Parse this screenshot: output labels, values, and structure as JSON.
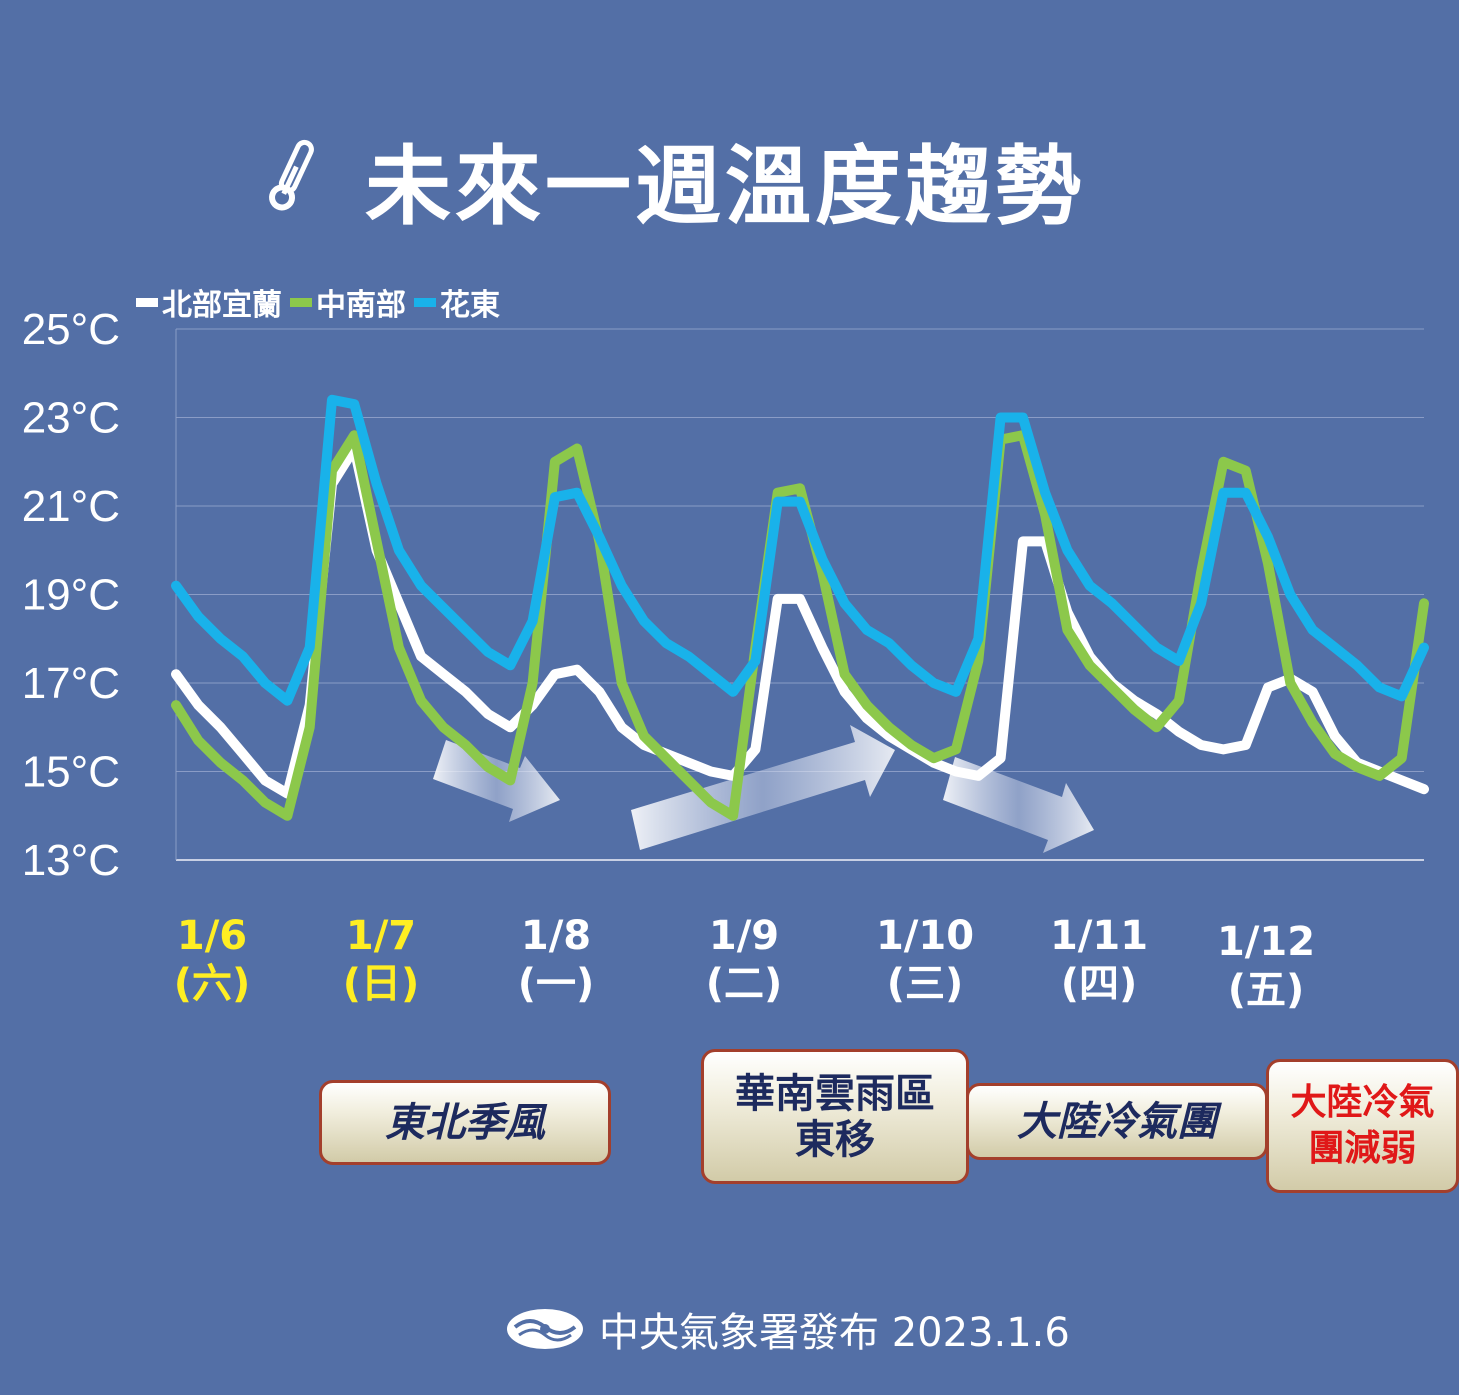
{
  "title": "未來一週溫度趨勢",
  "legend": [
    {
      "label": "北部宜蘭",
      "color": "#ffffff"
    },
    {
      "label": "中南部",
      "color": "#8cc84b"
    },
    {
      "label": "花東",
      "color": "#19b2ea"
    }
  ],
  "dates": [
    {
      "date": "1/6",
      "day": "(六)",
      "weekend": true
    },
    {
      "date": "1/7",
      "day": "(日)",
      "weekend": true
    },
    {
      "date": "1/8",
      "day": "(一)",
      "weekend": false
    },
    {
      "date": "1/9",
      "day": "(二)",
      "weekend": false
    },
    {
      "date": "1/10",
      "day": "(三)",
      "weekend": false
    },
    {
      "date": "1/11",
      "day": "(四)",
      "weekend": false
    },
    {
      "date": "1/12",
      "day": "(五)",
      "weekend": false
    }
  ],
  "notes": {
    "northeast_monsoon": "東北季風",
    "south_china_rain": [
      "華南雲雨區",
      "東移"
    ],
    "continental_cold_air": "大陸冷氣團",
    "cold_air_weakening": [
      "大陸冷氣",
      "團減弱"
    ]
  },
  "footer": {
    "text": "中央氣象署發布 2023.1.6"
  },
  "chart_data": {
    "type": "line",
    "ylim": [
      13,
      25
    ],
    "yticks": [
      "25°C",
      "23°C",
      "21°C",
      "19°C",
      "17°C",
      "15°C",
      "13°C"
    ],
    "grid": true,
    "legend_position": "top-left",
    "x": [
      0,
      1,
      2,
      3,
      4,
      5,
      6,
      7,
      8,
      9,
      10,
      11,
      12,
      13,
      14,
      15,
      16,
      17,
      18,
      19,
      20,
      21,
      22,
      23,
      24,
      25,
      26,
      27,
      28,
      29,
      30,
      31,
      32,
      33,
      34,
      35,
      36,
      37,
      38,
      39,
      40,
      41,
      42,
      43,
      44,
      45,
      46,
      47,
      48,
      49,
      50,
      51,
      52,
      53,
      54,
      55,
      56
    ],
    "series": [
      {
        "name": "北部宜蘭",
        "color": "#ffffff",
        "values": [
          17.2,
          16.5,
          16.0,
          15.4,
          14.8,
          14.5,
          16.5,
          21.5,
          22.3,
          20.0,
          18.8,
          17.6,
          17.2,
          16.8,
          16.3,
          16.0,
          16.5,
          17.2,
          17.3,
          16.8,
          16.0,
          15.6,
          15.4,
          15.2,
          15.0,
          14.9,
          15.5,
          18.9,
          18.9,
          17.8,
          16.8,
          16.2,
          15.8,
          15.5,
          15.2,
          15.0,
          14.9,
          15.3,
          20.2,
          20.2,
          18.6,
          17.6,
          17.0,
          16.6,
          16.3,
          15.9,
          15.6,
          15.5,
          15.6,
          16.9,
          17.1,
          16.8,
          15.8,
          15.2,
          15.0,
          14.8,
          14.6
        ]
      },
      {
        "name": "中南部",
        "color": "#8cc84b",
        "values": [
          16.5,
          15.7,
          15.2,
          14.8,
          14.3,
          14.0,
          16.0,
          21.8,
          22.6,
          20.2,
          17.8,
          16.6,
          16.0,
          15.6,
          15.1,
          14.8,
          17.0,
          22.0,
          22.3,
          20.2,
          17.0,
          15.8,
          15.3,
          14.8,
          14.3,
          14.0,
          17.8,
          21.3,
          21.4,
          19.5,
          17.2,
          16.5,
          16.0,
          15.6,
          15.3,
          15.5,
          17.5,
          22.5,
          22.6,
          20.8,
          18.2,
          17.4,
          16.9,
          16.4,
          16.0,
          16.6,
          19.5,
          22.0,
          21.8,
          19.7,
          17.0,
          16.1,
          15.4,
          15.1,
          14.9,
          15.3,
          18.8
        ]
      },
      {
        "name": "花東",
        "color": "#19b2ea",
        "values": [
          19.2,
          18.5,
          18.0,
          17.6,
          17.0,
          16.6,
          17.8,
          23.4,
          23.3,
          21.5,
          20.0,
          19.2,
          18.7,
          18.2,
          17.7,
          17.4,
          18.4,
          21.2,
          21.3,
          20.3,
          19.2,
          18.4,
          17.9,
          17.6,
          17.2,
          16.8,
          17.5,
          21.1,
          21.1,
          19.8,
          18.8,
          18.2,
          17.9,
          17.4,
          17.0,
          16.8,
          18.0,
          23.0,
          23.0,
          21.3,
          20.0,
          19.2,
          18.8,
          18.3,
          17.8,
          17.5,
          18.8,
          21.3,
          21.3,
          20.3,
          19.0,
          18.2,
          17.8,
          17.4,
          16.9,
          16.7,
          17.8
        ]
      }
    ]
  }
}
